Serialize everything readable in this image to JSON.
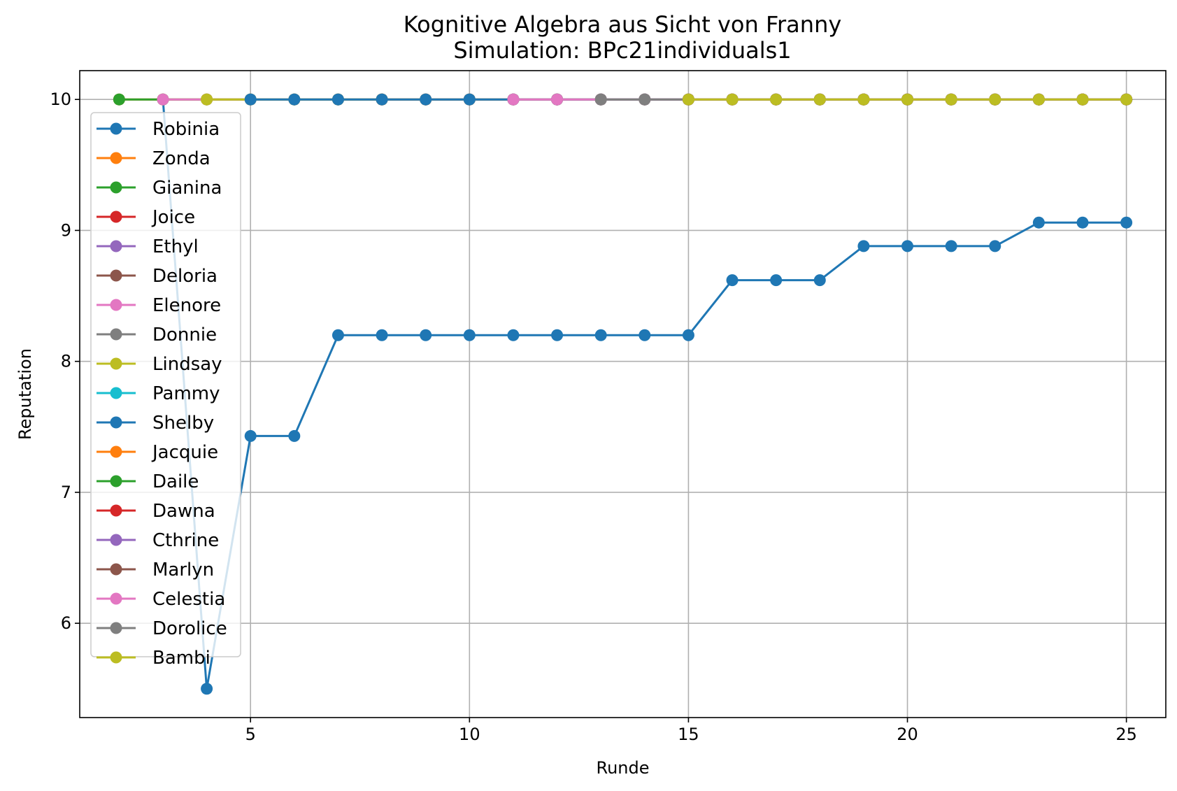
{
  "chart_data": {
    "type": "line",
    "title": "Kognitive Algebra aus Sicht von Franny",
    "subtitle": "Simulation: BPc21individuals1",
    "xlabel": "Runde",
    "ylabel": "Reputation",
    "xlim": [
      1.1,
      25.9
    ],
    "ylim": [
      5.28,
      10.22
    ],
    "xticks": [
      5,
      10,
      15,
      20,
      25
    ],
    "yticks": [
      6,
      7,
      8,
      9,
      10
    ],
    "grid": true,
    "legend_position": "left",
    "series": [
      {
        "name": "Robinia",
        "color": "#1f77b4",
        "x": [
          3,
          4,
          5,
          6,
          7,
          8,
          9,
          10,
          11,
          12,
          13,
          14,
          15,
          16,
          17,
          18,
          19,
          20,
          21,
          22,
          23,
          24,
          25
        ],
        "y": [
          10,
          5.5,
          7.43,
          7.43,
          8.2,
          8.2,
          8.2,
          8.2,
          8.2,
          8.2,
          8.2,
          8.2,
          8.2,
          8.62,
          8.62,
          8.62,
          8.88,
          8.88,
          8.88,
          8.88,
          9.06,
          9.06,
          9.06
        ]
      },
      {
        "name": "Zonda",
        "color": "#ff7f0e",
        "x": [
          2,
          3,
          4,
          5,
          6,
          7,
          8,
          9,
          10,
          11,
          12,
          13,
          14,
          15,
          16,
          17,
          18,
          19,
          20,
          21,
          22,
          23,
          24,
          25
        ],
        "y": [
          10,
          10,
          10,
          10,
          10,
          10,
          10,
          10,
          10,
          10,
          10,
          10,
          10,
          10,
          10,
          10,
          10,
          10,
          10,
          10,
          10,
          10,
          10,
          10
        ]
      },
      {
        "name": "Gianina",
        "color": "#2ca02c",
        "x": [
          2,
          3,
          4,
          5,
          6,
          7,
          8,
          9,
          10,
          11,
          12,
          13,
          14,
          15,
          16,
          17,
          18,
          19,
          20,
          21,
          22,
          23,
          24,
          25
        ],
        "y": [
          10,
          10,
          10,
          10,
          10,
          10,
          10,
          10,
          10,
          10,
          10,
          10,
          10,
          10,
          10,
          10,
          10,
          10,
          10,
          10,
          10,
          10,
          10,
          10
        ]
      },
      {
        "name": "Joice",
        "color": "#d62728",
        "x": [
          8,
          9,
          10,
          11,
          12,
          13,
          14,
          15,
          16,
          17,
          18,
          19,
          20,
          21,
          22,
          23,
          24,
          25
        ],
        "y": [
          10,
          10,
          10,
          10,
          10,
          10,
          10,
          10,
          10,
          10,
          10,
          10,
          10,
          10,
          10,
          10,
          10,
          10
        ]
      },
      {
        "name": "Ethyl",
        "color": "#9467bd",
        "x": [
          9,
          10,
          11,
          12,
          13,
          14,
          15,
          16,
          17,
          18,
          19,
          20,
          21,
          22,
          23,
          24,
          25
        ],
        "y": [
          10,
          10,
          10,
          10,
          10,
          10,
          10,
          10,
          10,
          10,
          10,
          10,
          10,
          10,
          10,
          10,
          10
        ]
      },
      {
        "name": "Deloria",
        "color": "#8c564b",
        "x": [
          10,
          11,
          12,
          13,
          14,
          15,
          16,
          17,
          18,
          19,
          20,
          21,
          22,
          23,
          24,
          25
        ],
        "y": [
          10,
          10,
          10,
          10,
          10,
          10,
          10,
          10,
          10,
          10,
          10,
          10,
          10,
          10,
          10,
          10
        ]
      },
      {
        "name": "Elenore",
        "color": "#e377c2",
        "x": [
          3,
          4,
          5,
          6,
          7,
          8,
          9,
          10,
          11,
          12,
          13,
          14,
          15,
          16,
          17,
          18,
          19,
          20,
          21,
          22,
          23,
          24,
          25
        ],
        "y": [
          10,
          10,
          10,
          10,
          10,
          10,
          10,
          10,
          10,
          10,
          10,
          10,
          10,
          10,
          10,
          10,
          10,
          10,
          10,
          10,
          10,
          10,
          10
        ]
      },
      {
        "name": "Donnie",
        "color": "#7f7f7f",
        "x": [
          12,
          13,
          14,
          15,
          16,
          17,
          18,
          19,
          20,
          21,
          22,
          23,
          24,
          25
        ],
        "y": [
          10,
          10,
          10,
          10,
          10,
          10,
          10,
          10,
          10,
          10,
          10,
          10,
          10,
          10
        ]
      },
      {
        "name": "Lindsay",
        "color": "#bcbd22",
        "x": [
          4,
          5,
          6,
          7,
          8,
          9,
          10,
          11,
          12,
          13,
          14,
          15,
          16,
          17,
          18,
          19,
          20,
          21,
          22,
          23,
          24,
          25
        ],
        "y": [
          10,
          10,
          10,
          10,
          10,
          10,
          10,
          10,
          10,
          10,
          10,
          10,
          10,
          10,
          10,
          10,
          10,
          10,
          10,
          10,
          10,
          10
        ]
      },
      {
        "name": "Pammy",
        "color": "#17becf",
        "x": [
          15,
          16,
          17,
          18,
          19,
          20,
          21,
          22,
          23,
          24,
          25
        ],
        "y": [
          10,
          10,
          10,
          10,
          10,
          10,
          10,
          10,
          10,
          10,
          10
        ]
      },
      {
        "name": "Shelby",
        "color": "#1f77b4",
        "x": [
          5,
          6,
          7,
          8,
          9,
          10,
          11,
          12,
          13,
          14,
          15,
          16,
          17,
          18,
          19,
          20,
          21,
          22,
          23,
          24,
          25
        ],
        "y": [
          10,
          10,
          10,
          10,
          10,
          10,
          10,
          10,
          10,
          10,
          10,
          10,
          10,
          10,
          10,
          10,
          10,
          10,
          10,
          10,
          10
        ]
      },
      {
        "name": "Jacquie",
        "color": "#ff7f0e",
        "x": [
          15,
          16,
          17,
          18,
          19,
          20,
          21,
          22,
          23,
          24,
          25
        ],
        "y": [
          10,
          10,
          10,
          10,
          10,
          10,
          10,
          10,
          10,
          10,
          10
        ]
      },
      {
        "name": "Daile",
        "color": "#2ca02c",
        "x": [
          15,
          16,
          17,
          18,
          19,
          20,
          21,
          22,
          23,
          24,
          25
        ],
        "y": [
          10,
          10,
          10,
          10,
          10,
          10,
          10,
          10,
          10,
          10,
          10
        ]
      },
      {
        "name": "Dawna",
        "color": "#d62728",
        "x": [
          15,
          16,
          17,
          18,
          19,
          20,
          21,
          22,
          23,
          24,
          25
        ],
        "y": [
          10,
          10,
          10,
          10,
          10,
          10,
          10,
          10,
          10,
          10,
          10
        ]
      },
      {
        "name": "Cthrine",
        "color": "#9467bd",
        "x": [
          15,
          16,
          17,
          18,
          19,
          20,
          21,
          22,
          23,
          24,
          25
        ],
        "y": [
          10,
          10,
          10,
          10,
          10,
          10,
          10,
          10,
          10,
          10,
          10
        ]
      },
      {
        "name": "Marlyn",
        "color": "#8c564b",
        "x": [
          15,
          16,
          17,
          18,
          19,
          20,
          21,
          22,
          23,
          24,
          25
        ],
        "y": [
          10,
          10,
          10,
          10,
          10,
          10,
          10,
          10,
          10,
          10,
          10
        ]
      },
      {
        "name": "Celestia",
        "color": "#e377c2",
        "x": [
          11,
          12,
          13,
          14,
          15,
          16,
          17,
          18,
          19,
          20,
          21,
          22,
          23,
          24,
          25
        ],
        "y": [
          10,
          10,
          10,
          10,
          10,
          10,
          10,
          10,
          10,
          10,
          10,
          10,
          10,
          10,
          10
        ]
      },
      {
        "name": "Dorolice",
        "color": "#7f7f7f",
        "x": [
          13,
          14,
          15,
          16,
          17,
          18,
          19,
          20,
          21,
          22,
          23,
          24,
          25
        ],
        "y": [
          10,
          10,
          10,
          10,
          10,
          10,
          10,
          10,
          10,
          10,
          10,
          10,
          10
        ]
      },
      {
        "name": "Bambi",
        "color": "#bcbd22",
        "x": [
          15,
          16,
          17,
          18,
          19,
          20,
          21,
          22,
          23,
          24,
          25
        ],
        "y": [
          10,
          10,
          10,
          10,
          10,
          10,
          10,
          10,
          10,
          10,
          10
        ]
      }
    ]
  }
}
